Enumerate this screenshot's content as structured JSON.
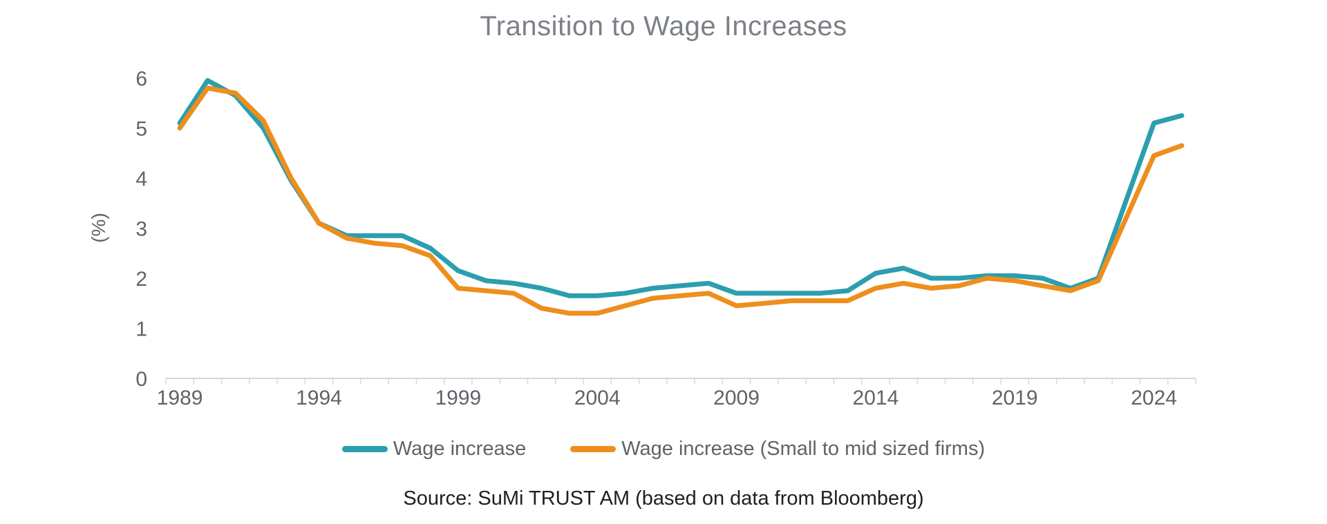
{
  "title": "Transition to Wage Increases",
  "source": "Source: SuMi TRUST AM (based on data from Bloomberg)",
  "colors": {
    "series_main": "#2b9eaf",
    "series_small_mid": "#ee8e1c",
    "axis_line": "#d8d8d8",
    "axis_tick": "#d8d8d8",
    "tick_label": "#5f6369",
    "title_text": "#7b8087",
    "source_text": "#1f1f1f",
    "background": "#ffffff"
  },
  "legend": [
    {
      "label": "Wage increase",
      "color": "#2b9eaf"
    },
    {
      "label": "Wage increase (Small to mid sized firms)",
      "color": "#ee8e1c"
    }
  ],
  "chart_data": {
    "type": "line",
    "title": "Transition to Wage Increases",
    "xlabel": "",
    "ylabel": "(%)",
    "ylim": [
      0,
      6
    ],
    "yticks": [
      0,
      1,
      2,
      3,
      4,
      5,
      6
    ],
    "grid": false,
    "legend_position": "bottom",
    "x": [
      1989,
      1990,
      1991,
      1992,
      1993,
      1994,
      1995,
      1996,
      1997,
      1998,
      1999,
      2000,
      2001,
      2002,
      2003,
      2004,
      2005,
      2006,
      2007,
      2008,
      2009,
      2010,
      2011,
      2012,
      2013,
      2014,
      2015,
      2016,
      2017,
      2018,
      2019,
      2020,
      2021,
      2022,
      2023,
      2024,
      2025
    ],
    "xticks_labeled": [
      1989,
      1994,
      1999,
      2004,
      2009,
      2014,
      2019,
      2024
    ],
    "series": [
      {
        "name": "Wage increase",
        "color": "#2b9eaf",
        "values": [
          5.1,
          5.95,
          5.65,
          5.0,
          3.95,
          3.1,
          2.85,
          2.85,
          2.85,
          2.6,
          2.15,
          1.95,
          1.9,
          1.8,
          1.65,
          1.65,
          1.7,
          1.8,
          1.85,
          1.9,
          1.7,
          1.7,
          1.7,
          1.7,
          1.75,
          2.1,
          2.2,
          2.0,
          2.0,
          2.05,
          2.05,
          2.0,
          1.8,
          2.0,
          3.55,
          5.1,
          5.25
        ]
      },
      {
        "name": "Wage increase (Small to mid sized firms)",
        "color": "#ee8e1c",
        "values": [
          5.0,
          5.8,
          5.7,
          5.15,
          4.0,
          3.1,
          2.8,
          2.7,
          2.65,
          2.45,
          1.8,
          1.75,
          1.7,
          1.4,
          1.3,
          1.3,
          1.45,
          1.6,
          1.65,
          1.7,
          1.45,
          1.5,
          1.55,
          1.55,
          1.55,
          1.8,
          1.9,
          1.8,
          1.85,
          2.0,
          1.95,
          1.85,
          1.75,
          1.95,
          3.2,
          4.45,
          4.65
        ]
      }
    ]
  }
}
